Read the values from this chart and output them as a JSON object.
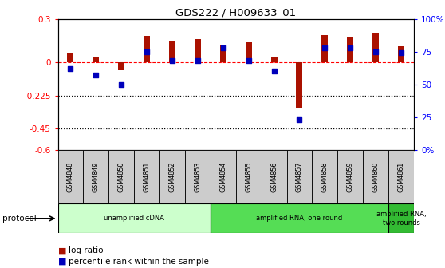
{
  "title": "GDS222 / H009633_01",
  "samples": [
    "GSM4848",
    "GSM4849",
    "GSM4850",
    "GSM4851",
    "GSM4852",
    "GSM4853",
    "GSM4854",
    "GSM4855",
    "GSM4856",
    "GSM4857",
    "GSM4858",
    "GSM4859",
    "GSM4860",
    "GSM4861"
  ],
  "log_ratio": [
    0.07,
    0.04,
    -0.05,
    0.18,
    0.15,
    0.16,
    0.12,
    0.14,
    0.04,
    -0.31,
    0.19,
    0.17,
    0.2,
    0.11
  ],
  "percentile": [
    62,
    57,
    50,
    75,
    68,
    68,
    78,
    68,
    60,
    23,
    78,
    78,
    75,
    74
  ],
  "ylim_left": [
    -0.6,
    0.3
  ],
  "ylim_right": [
    0,
    100
  ],
  "yticks_left": [
    -0.6,
    -0.45,
    -0.225,
    0.0,
    0.3
  ],
  "yticks_right": [
    0,
    25,
    50,
    75,
    100
  ],
  "ytick_labels_left": [
    "-0.6",
    "-0.45",
    "-0.225",
    "0",
    "0.3"
  ],
  "ytick_labels_right": [
    "0%",
    "25",
    "50",
    "75",
    "100%"
  ],
  "hline_y": 0.0,
  "dotted_lines": [
    -0.225,
    -0.45
  ],
  "protocol_groups": [
    {
      "label": "unamplified cDNA",
      "start": 0,
      "end": 5,
      "color": "#ccffcc"
    },
    {
      "label": "amplified RNA, one round",
      "start": 6,
      "end": 12,
      "color": "#55dd55"
    },
    {
      "label": "amplified RNA,\ntwo rounds",
      "start": 13,
      "end": 13,
      "color": "#33bb33"
    }
  ],
  "bar_color": "#aa1100",
  "dot_color": "#0000bb",
  "bar_width": 0.25,
  "dot_size": 25,
  "label_box_color": "#cccccc",
  "protocol_label": "protocol",
  "background_color": "#ffffff"
}
